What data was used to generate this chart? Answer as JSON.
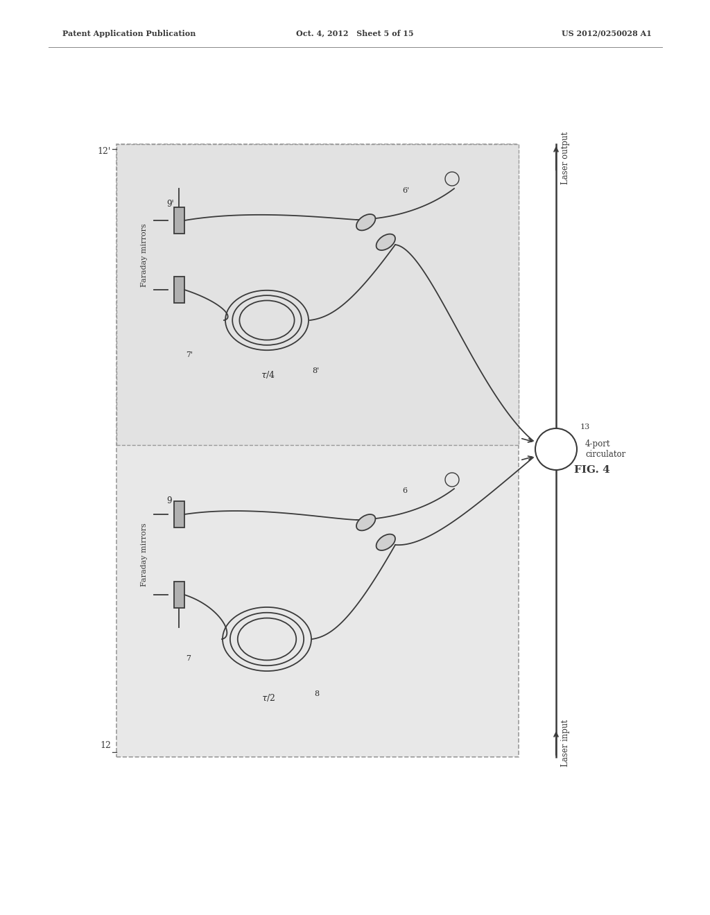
{
  "bg_color": "#ffffff",
  "header_left": "Patent Application Publication",
  "header_mid": "Oct. 4, 2012   Sheet 5 of 15",
  "header_right": "US 2012/0250028 A1",
  "fig_label": "FIG. 4",
  "line_color": "#3a3a3a",
  "text_color": "#2a2a2a",
  "box_fill": "#e8e8e8",
  "mirror_fill": "#b0b0b0",
  "coupler_fill": "#d0d0d0"
}
